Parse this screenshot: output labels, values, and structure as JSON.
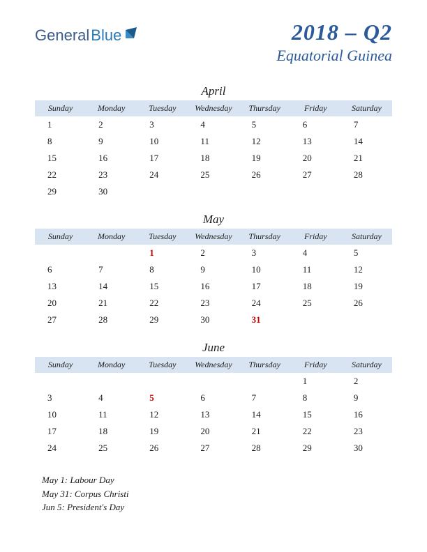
{
  "logo": {
    "part1": "General",
    "part2": "Blue"
  },
  "title": {
    "period": "2018 – Q2",
    "country": "Equatorial Guinea"
  },
  "colors": {
    "header_bg": "#d8e4f2",
    "title_color": "#2a5a9a",
    "holiday_color": "#cc0000",
    "text_color": "#1a1a1a",
    "background": "#ffffff"
  },
  "typography": {
    "period_fontsize": 32,
    "country_fontsize": 22,
    "month_fontsize": 17,
    "dayheader_fontsize": 12,
    "cell_fontsize": 13,
    "holiday_fontsize": 13
  },
  "day_headers": [
    "Sunday",
    "Monday",
    "Tuesday",
    "Wednesday",
    "Thursday",
    "Friday",
    "Saturday"
  ],
  "months": [
    {
      "name": "April",
      "weeks": [
        [
          {
            "d": "1"
          },
          {
            "d": "2"
          },
          {
            "d": "3"
          },
          {
            "d": "4"
          },
          {
            "d": "5"
          },
          {
            "d": "6"
          },
          {
            "d": "7"
          }
        ],
        [
          {
            "d": "8"
          },
          {
            "d": "9"
          },
          {
            "d": "10"
          },
          {
            "d": "11"
          },
          {
            "d": "12"
          },
          {
            "d": "13"
          },
          {
            "d": "14"
          }
        ],
        [
          {
            "d": "15"
          },
          {
            "d": "16"
          },
          {
            "d": "17"
          },
          {
            "d": "18"
          },
          {
            "d": "19"
          },
          {
            "d": "20"
          },
          {
            "d": "21"
          }
        ],
        [
          {
            "d": "22"
          },
          {
            "d": "23"
          },
          {
            "d": "24"
          },
          {
            "d": "25"
          },
          {
            "d": "26"
          },
          {
            "d": "27"
          },
          {
            "d": "28"
          }
        ],
        [
          {
            "d": "29"
          },
          {
            "d": "30"
          },
          {
            "d": ""
          },
          {
            "d": ""
          },
          {
            "d": ""
          },
          {
            "d": ""
          },
          {
            "d": ""
          }
        ]
      ]
    },
    {
      "name": "May",
      "weeks": [
        [
          {
            "d": ""
          },
          {
            "d": ""
          },
          {
            "d": "1",
            "h": true
          },
          {
            "d": "2"
          },
          {
            "d": "3"
          },
          {
            "d": "4"
          },
          {
            "d": "5"
          }
        ],
        [
          {
            "d": "6"
          },
          {
            "d": "7"
          },
          {
            "d": "8"
          },
          {
            "d": "9"
          },
          {
            "d": "10"
          },
          {
            "d": "11"
          },
          {
            "d": "12"
          }
        ],
        [
          {
            "d": "13"
          },
          {
            "d": "14"
          },
          {
            "d": "15"
          },
          {
            "d": "16"
          },
          {
            "d": "17"
          },
          {
            "d": "18"
          },
          {
            "d": "19"
          }
        ],
        [
          {
            "d": "20"
          },
          {
            "d": "21"
          },
          {
            "d": "22"
          },
          {
            "d": "23"
          },
          {
            "d": "24"
          },
          {
            "d": "25"
          },
          {
            "d": "26"
          }
        ],
        [
          {
            "d": "27"
          },
          {
            "d": "28"
          },
          {
            "d": "29"
          },
          {
            "d": "30"
          },
          {
            "d": "31",
            "h": true
          },
          {
            "d": ""
          },
          {
            "d": ""
          }
        ]
      ]
    },
    {
      "name": "June",
      "weeks": [
        [
          {
            "d": ""
          },
          {
            "d": ""
          },
          {
            "d": ""
          },
          {
            "d": ""
          },
          {
            "d": ""
          },
          {
            "d": "1"
          },
          {
            "d": "2"
          }
        ],
        [
          {
            "d": "3"
          },
          {
            "d": "4"
          },
          {
            "d": "5",
            "h": true
          },
          {
            "d": "6"
          },
          {
            "d": "7"
          },
          {
            "d": "8"
          },
          {
            "d": "9"
          }
        ],
        [
          {
            "d": "10"
          },
          {
            "d": "11"
          },
          {
            "d": "12"
          },
          {
            "d": "13"
          },
          {
            "d": "14"
          },
          {
            "d": "15"
          },
          {
            "d": "16"
          }
        ],
        [
          {
            "d": "17"
          },
          {
            "d": "18"
          },
          {
            "d": "19"
          },
          {
            "d": "20"
          },
          {
            "d": "21"
          },
          {
            "d": "22"
          },
          {
            "d": "23"
          }
        ],
        [
          {
            "d": "24"
          },
          {
            "d": "25"
          },
          {
            "d": "26"
          },
          {
            "d": "27"
          },
          {
            "d": "28"
          },
          {
            "d": "29"
          },
          {
            "d": "30"
          }
        ]
      ]
    }
  ],
  "holidays": [
    "May 1: Labour Day",
    "May 31: Corpus Christi",
    "Jun 5: President's Day"
  ]
}
